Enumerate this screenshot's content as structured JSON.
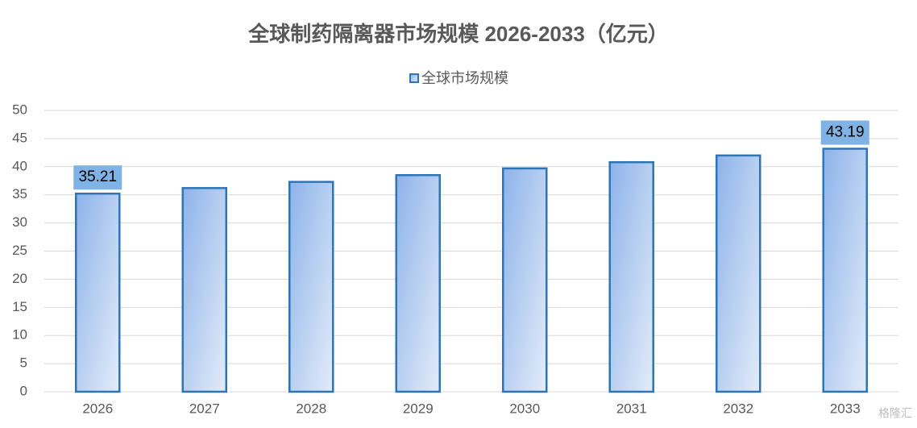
{
  "chart_data": {
    "type": "bar",
    "title": "全球制药隔离器市场规模 2026-2033（亿元）",
    "categories": [
      "2026",
      "2027",
      "2028",
      "2029",
      "2030",
      "2031",
      "2032",
      "2033"
    ],
    "series": [
      {
        "name": "全球市场规模",
        "color": "#2e75b6",
        "values": [
          35.21,
          36.2,
          37.3,
          38.5,
          39.7,
          40.8,
          42.0,
          43.19
        ],
        "value_labels": [
          "35.21",
          null,
          null,
          null,
          null,
          null,
          null,
          "43.19"
        ]
      }
    ],
    "ylim": [
      0,
      50
    ],
    "yticks": [
      0,
      5,
      10,
      15,
      20,
      25,
      30,
      35,
      40,
      45,
      50
    ],
    "grid": true,
    "legend": "top",
    "watermark": "格隆汇"
  }
}
